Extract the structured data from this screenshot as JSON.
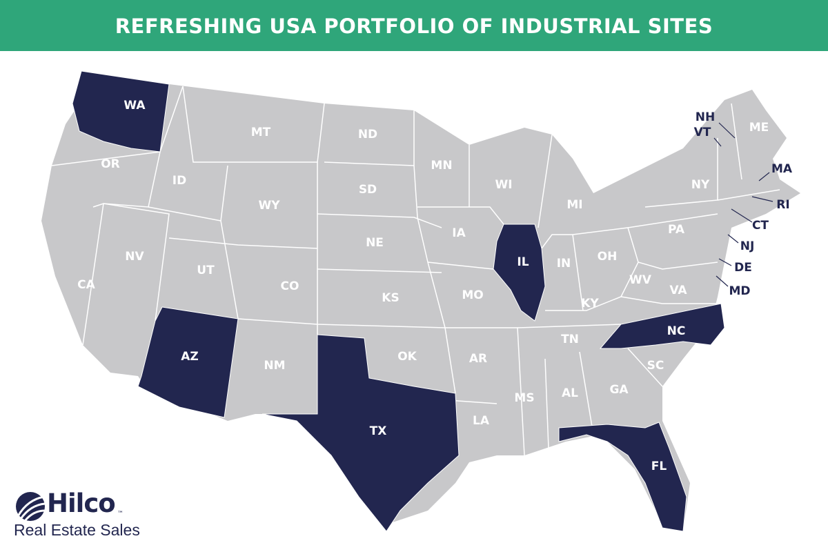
{
  "header": {
    "title": "REFRESHING USA PORTFOLIO OF INDUSTRIAL SITES"
  },
  "map": {
    "base_color": "#c8c8ca",
    "highlight_color": "#22264f",
    "states": [
      {
        "label": "WA",
        "highlighted": true
      },
      {
        "label": "OR",
        "highlighted": false
      },
      {
        "label": "CA",
        "highlighted": false
      },
      {
        "label": "ID",
        "highlighted": false
      },
      {
        "label": "NV",
        "highlighted": false
      },
      {
        "label": "MT",
        "highlighted": false
      },
      {
        "label": "WY",
        "highlighted": false
      },
      {
        "label": "UT",
        "highlighted": false
      },
      {
        "label": "AZ",
        "highlighted": true
      },
      {
        "label": "CO",
        "highlighted": false
      },
      {
        "label": "NM",
        "highlighted": false
      },
      {
        "label": "ND",
        "highlighted": false
      },
      {
        "label": "SD",
        "highlighted": false
      },
      {
        "label": "NE",
        "highlighted": false
      },
      {
        "label": "KS",
        "highlighted": false
      },
      {
        "label": "OK",
        "highlighted": false
      },
      {
        "label": "TX",
        "highlighted": true
      },
      {
        "label": "MN",
        "highlighted": false
      },
      {
        "label": "IA",
        "highlighted": false
      },
      {
        "label": "MO",
        "highlighted": false
      },
      {
        "label": "AR",
        "highlighted": false
      },
      {
        "label": "LA",
        "highlighted": false
      },
      {
        "label": "WI",
        "highlighted": false
      },
      {
        "label": "IL",
        "highlighted": true
      },
      {
        "label": "MI",
        "highlighted": false
      },
      {
        "label": "IN",
        "highlighted": false
      },
      {
        "label": "OH",
        "highlighted": false
      },
      {
        "label": "KY",
        "highlighted": false
      },
      {
        "label": "TN",
        "highlighted": false
      },
      {
        "label": "MS",
        "highlighted": false
      },
      {
        "label": "AL",
        "highlighted": false
      },
      {
        "label": "GA",
        "highlighted": false
      },
      {
        "label": "FL",
        "highlighted": true
      },
      {
        "label": "SC",
        "highlighted": false
      },
      {
        "label": "NC",
        "highlighted": true
      },
      {
        "label": "VA",
        "highlighted": false
      },
      {
        "label": "WV",
        "highlighted": false
      },
      {
        "label": "PA",
        "highlighted": false
      },
      {
        "label": "NY",
        "highlighted": false
      },
      {
        "label": "ME",
        "highlighted": false
      },
      {
        "label": "NH",
        "highlighted": false
      },
      {
        "label": "VT",
        "highlighted": false
      },
      {
        "label": "MA",
        "highlighted": false
      },
      {
        "label": "RI",
        "highlighted": false
      },
      {
        "label": "CT",
        "highlighted": false
      },
      {
        "label": "NJ",
        "highlighted": false
      },
      {
        "label": "DE",
        "highlighted": false
      },
      {
        "label": "MD",
        "highlighted": false
      }
    ]
  },
  "logo": {
    "name": "Hilco",
    "trademark": "™",
    "tagline": "Real Estate Sales"
  }
}
